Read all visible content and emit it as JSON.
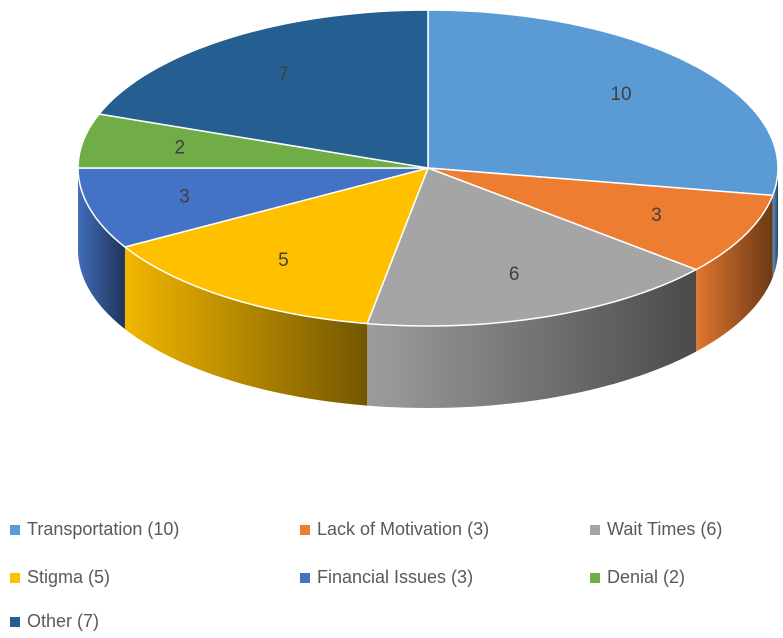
{
  "chart_data": {
    "type": "pie3d",
    "categories": [
      "Transportation (10)",
      "Lack of Motivation (3)",
      "Wait Times (6)",
      "Stigma (5)",
      "Financial Issues (3)",
      "Denial (2)",
      "Other (7)"
    ],
    "values": [
      10,
      3,
      6,
      5,
      3,
      2,
      7
    ],
    "colors": [
      "#5b9bd5",
      "#ed7d31",
      "#a5a5a5",
      "#ffc000",
      "#4472c4",
      "#70ad47",
      "#255e91"
    ],
    "legend": "bottom"
  }
}
